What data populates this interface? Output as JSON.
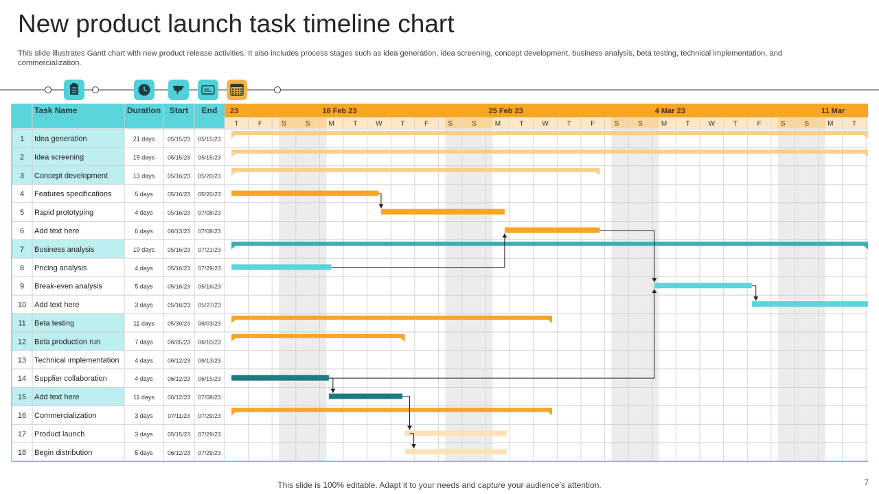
{
  "title": "New product launch task timeline chart",
  "subtitle": "This slide illustrates Gantt chart with new product release activities. It also includes process stages such as idea generation, idea screening, concept development, business analysis, beta testing, technical implementation, and commercialization.",
  "footer": "This slide is 100% editable. Adapt it to your needs and capture your audience’s attention.",
  "page_number": "7",
  "icons": [
    {
      "name": "clipboard-icon",
      "bg": "#4fd1d9"
    },
    {
      "name": "clock-icon",
      "bg": "#4fd1d9"
    },
    {
      "name": "flag-icon",
      "bg": "#4fd1d9"
    },
    {
      "name": "card-icon",
      "bg": "#4fd1d9"
    },
    {
      "name": "calendar-icon",
      "bg": "#f5b04a"
    }
  ],
  "colors": {
    "header_teal": "#5bd4db",
    "header_orange": "#f6a623",
    "row_highlight": "#bdeef0",
    "weekend_shade": "#ececec",
    "orange": "#f5a623",
    "light_orange": "#f9d08b",
    "pale_orange": "#fde2b8",
    "dark_teal": "#1f7b82",
    "teal": "#3aaeb2",
    "cyan": "#5bd4db"
  },
  "chart_data": {
    "type": "gantt",
    "columns": [
      "Task Name",
      "Duration",
      "Start",
      "End"
    ],
    "week_labels": [
      {
        "label": "23",
        "day_index": 0
      },
      {
        "label": "18  Feb     23",
        "day_index": 4
      },
      {
        "label": "25  Feb     23",
        "day_index": 11
      },
      {
        "label": "4  Mar     23",
        "day_index": 18
      },
      {
        "label": "11  Mar",
        "day_index": 25
      }
    ],
    "days": [
      "T",
      "F",
      "S",
      "S",
      "M",
      "T",
      "W",
      "T",
      "F",
      "S",
      "S",
      "M",
      "T",
      "W",
      "T",
      "F",
      "S",
      "S",
      "M",
      "T",
      "W",
      "T",
      "F",
      "S",
      "S",
      "M",
      "T"
    ],
    "weekend_days": [
      2,
      3,
      9,
      10,
      16,
      17,
      23,
      24
    ],
    "tasks": [
      {
        "id": "1",
        "name": "Idea generation",
        "duration": "21 days",
        "start": "05/15/23",
        "end": "05/15/23",
        "highlight": true
      },
      {
        "id": "2",
        "name": "Idea screening",
        "duration": "19 days",
        "start": "05/15/23",
        "end": "05/15/23",
        "highlight": true
      },
      {
        "id": "3",
        "name": "Concept development",
        "duration": "13 days",
        "start": "05/16/23",
        "end": "05/20/23",
        "highlight": true
      },
      {
        "id": "4",
        "name": "Features specifications",
        "duration": "5 days",
        "start": "05/16/23",
        "end": "05/20/23",
        "highlight": false
      },
      {
        "id": "5",
        "name": "Rapid prototyping",
        "duration": "4 days",
        "start": "05/16/23",
        "end": "07/08/23",
        "highlight": false
      },
      {
        "id": "6",
        "name": "Add text here",
        "duration": "6 days",
        "start": "06/13/23",
        "end": "07/08/23",
        "highlight": false
      },
      {
        "id": "7",
        "name": "Business analysis",
        "duration": "19 days",
        "start": "05/16/23",
        "end": "07/21/23",
        "highlight": true
      },
      {
        "id": "8",
        "name": "Pricing analysis",
        "duration": "4 days",
        "start": "05/16/23",
        "end": "07/29/23",
        "highlight": false
      },
      {
        "id": "9",
        "name": "Break-even analysis",
        "duration": "5 days",
        "start": "05/16/23",
        "end": "05/16/23",
        "highlight": false
      },
      {
        "id": "10",
        "name": "Add text here",
        "duration": "3 days",
        "start": "05/16/23",
        "end": "05/27/23",
        "highlight": false
      },
      {
        "id": "11",
        "name": "Beta testing",
        "duration": "11 days",
        "start": "05/30/23",
        "end": "06/03/23",
        "highlight": true
      },
      {
        "id": "12",
        "name": "Beta production run",
        "duration": "7 days",
        "start": "06/05/23",
        "end": "06/10/23",
        "highlight": true
      },
      {
        "id": "13",
        "name": "Technical implementation",
        "duration": "4 days",
        "start": "06/12/23",
        "end": "06/13/23",
        "highlight": false
      },
      {
        "id": "14",
        "name": "Supplier collaboration",
        "duration": "4 days",
        "start": "06/12/23",
        "end": "06/15/23",
        "highlight": false
      },
      {
        "id": "15",
        "name": "Add text here",
        "duration": "11 days",
        "start": "06/12/23",
        "end": "07/08/23",
        "highlight": true
      },
      {
        "id": "16",
        "name": "Commercialization",
        "duration": "3 days",
        "start": "07/11/23",
        "end": "07/29/23",
        "highlight": false
      },
      {
        "id": "17",
        "name": "Product launch",
        "duration": "3 days",
        "start": "05/15/23",
        "end": "07/29/23",
        "highlight": false
      },
      {
        "id": "18",
        "name": "Begin distribution",
        "duration": "5 days",
        "start": "06/12/23",
        "end": "07/29/23",
        "highlight": false
      }
    ],
    "bars": [
      {
        "row": 1,
        "start": 0.0,
        "end": 27.0,
        "color": "light_orange",
        "style": "summary"
      },
      {
        "row": 2,
        "start": 0.0,
        "end": 27.0,
        "color": "light_orange",
        "style": "summary"
      },
      {
        "row": 3,
        "start": 0.0,
        "end": 15.5,
        "color": "light_orange",
        "style": "summary"
      },
      {
        "row": 4,
        "start": 0.0,
        "end": 6.2,
        "color": "orange",
        "style": "task"
      },
      {
        "row": 5,
        "start": 6.3,
        "end": 11.5,
        "color": "orange",
        "style": "task"
      },
      {
        "row": 6,
        "start": 11.5,
        "end": 15.5,
        "color": "orange",
        "style": "task"
      },
      {
        "row": 7,
        "start": 0.0,
        "end": 27.0,
        "color": "teal",
        "style": "summary"
      },
      {
        "row": 8,
        "start": 0.0,
        "end": 4.2,
        "color": "cyan",
        "style": "task"
      },
      {
        "row": 9,
        "start": 17.8,
        "end": 21.9,
        "color": "cyan",
        "style": "task"
      },
      {
        "row": 10,
        "start": 21.9,
        "end": 27.0,
        "color": "cyan",
        "style": "task"
      },
      {
        "row": 11,
        "start": 0.0,
        "end": 13.5,
        "color": "orange",
        "style": "summary"
      },
      {
        "row": 12,
        "start": 0.0,
        "end": 7.3,
        "color": "orange",
        "style": "summary"
      },
      {
        "row": 14,
        "start": 0.0,
        "end": 4.1,
        "color": "dark_teal",
        "style": "task"
      },
      {
        "row": 15,
        "start": 4.1,
        "end": 7.2,
        "color": "dark_teal",
        "style": "task"
      },
      {
        "row": 16,
        "start": 0.0,
        "end": 13.5,
        "color": "orange",
        "style": "summary"
      },
      {
        "row": 17,
        "start": 7.3,
        "end": 11.6,
        "color": "pale_orange",
        "style": "task"
      },
      {
        "row": 18,
        "start": 7.3,
        "end": 11.6,
        "color": "pale_orange",
        "style": "task"
      }
    ],
    "links": [
      {
        "from_row": 4,
        "to_row": 5,
        "x_day": 6.2,
        "to_day": 6.3
      },
      {
        "from_row": 8,
        "to_row": 6,
        "x_day": 4.2,
        "to_day": 11.5
      },
      {
        "from_row": 6,
        "to_row": 9,
        "x_day": 15.5,
        "to_day": 17.8
      },
      {
        "from_row": 9,
        "to_row": 10,
        "x_day": 21.9,
        "to_day": 21.9
      },
      {
        "from_row": 14,
        "to_row": 9,
        "x_day": 4.1,
        "to_day": 17.8
      },
      {
        "from_row": 14,
        "to_row": 15,
        "x_day": 4.1,
        "to_day": 4.1
      },
      {
        "from_row": 15,
        "to_row": 17,
        "x_day": 7.2,
        "to_day": 7.5
      },
      {
        "from_row": 17,
        "to_row": 18,
        "x_day": 7.5,
        "to_day": 7.5
      }
    ]
  }
}
